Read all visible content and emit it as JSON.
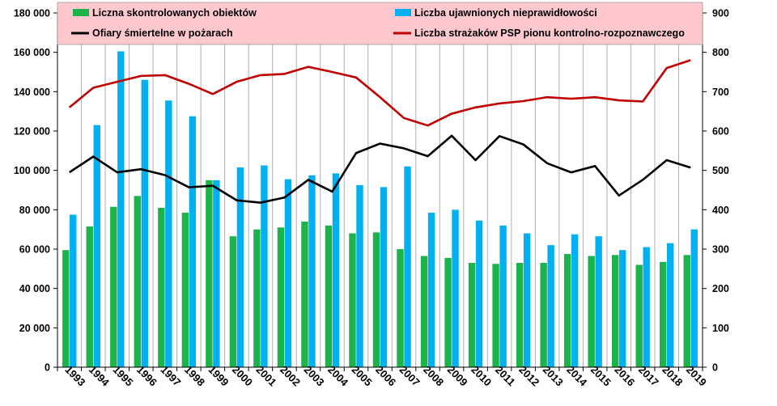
{
  "chart_data": {
    "type": "bar",
    "categories": [
      "1993",
      "1994",
      "1995",
      "1996",
      "1997",
      "1998",
      "1999",
      "2000",
      "2001",
      "2002",
      "2003",
      "2004",
      "2005",
      "2006",
      "2007",
      "2008",
      "2009",
      "2010",
      "2011",
      "2012",
      "2013",
      "2014",
      "2015",
      "2016",
      "2017",
      "2018",
      "2019"
    ],
    "series": [
      {
        "name": "Liczna skontrolowanych obiektów",
        "kind": "bar",
        "axis": "left",
        "color": "#1BB34A",
        "values": [
          59500,
          71500,
          81500,
          87000,
          81000,
          78500,
          95000,
          66500,
          70000,
          71000,
          74000,
          72000,
          68000,
          68500,
          60000,
          56500,
          55500,
          53000,
          52500,
          53000,
          53000,
          57500,
          56500,
          57000,
          52000,
          53500,
          57000
        ]
      },
      {
        "name": "Liczba ujawnionych nieprawidłowości",
        "kind": "bar",
        "axis": "left",
        "color": "#00B0F0",
        "values": [
          77500,
          123000,
          160500,
          146000,
          135500,
          127500,
          95000,
          101500,
          102500,
          95500,
          97500,
          98500,
          92500,
          91500,
          102000,
          78500,
          80000,
          74500,
          72000,
          68000,
          62000,
          67500,
          66500,
          59500,
          61000,
          63000,
          70000
        ]
      },
      {
        "name": "Ofiary śmiertelne w pożarach",
        "kind": "line",
        "axis": "right",
        "color": "#000000",
        "values": [
          495,
          535,
          495,
          503,
          488,
          457,
          461,
          424,
          418,
          431,
          476,
          446,
          544,
          568,
          556,
          536,
          588,
          526,
          587,
          566,
          518,
          495,
          511,
          436,
          476,
          526,
          507
        ]
      },
      {
        "name": "Liczba strażaków PSP pionu kontrolno-rozpoznawczego",
        "kind": "line",
        "axis": "right",
        "color": "#C00000",
        "values": [
          660,
          710,
          725,
          740,
          742,
          720,
          694,
          725,
          742,
          745,
          763,
          750,
          736,
          686,
          633,
          614,
          644,
          660,
          670,
          676,
          686,
          682,
          686,
          678,
          675,
          760,
          780
        ]
      }
    ],
    "ylim_left": [
      0,
      180000
    ],
    "ylim_right": [
      0,
      900
    ],
    "yticks_left": [
      "0",
      "20 000",
      "40 000",
      "60 000",
      "80 000",
      "100 000",
      "120 000",
      "140 000",
      "160 000",
      "180 000"
    ],
    "yticks_right": [
      "0",
      "100",
      "200",
      "300",
      "400",
      "500",
      "600",
      "700",
      "800",
      "900"
    ],
    "legend_placement": "top",
    "legend_background": "#FFC7CE",
    "grid": "vertical"
  }
}
